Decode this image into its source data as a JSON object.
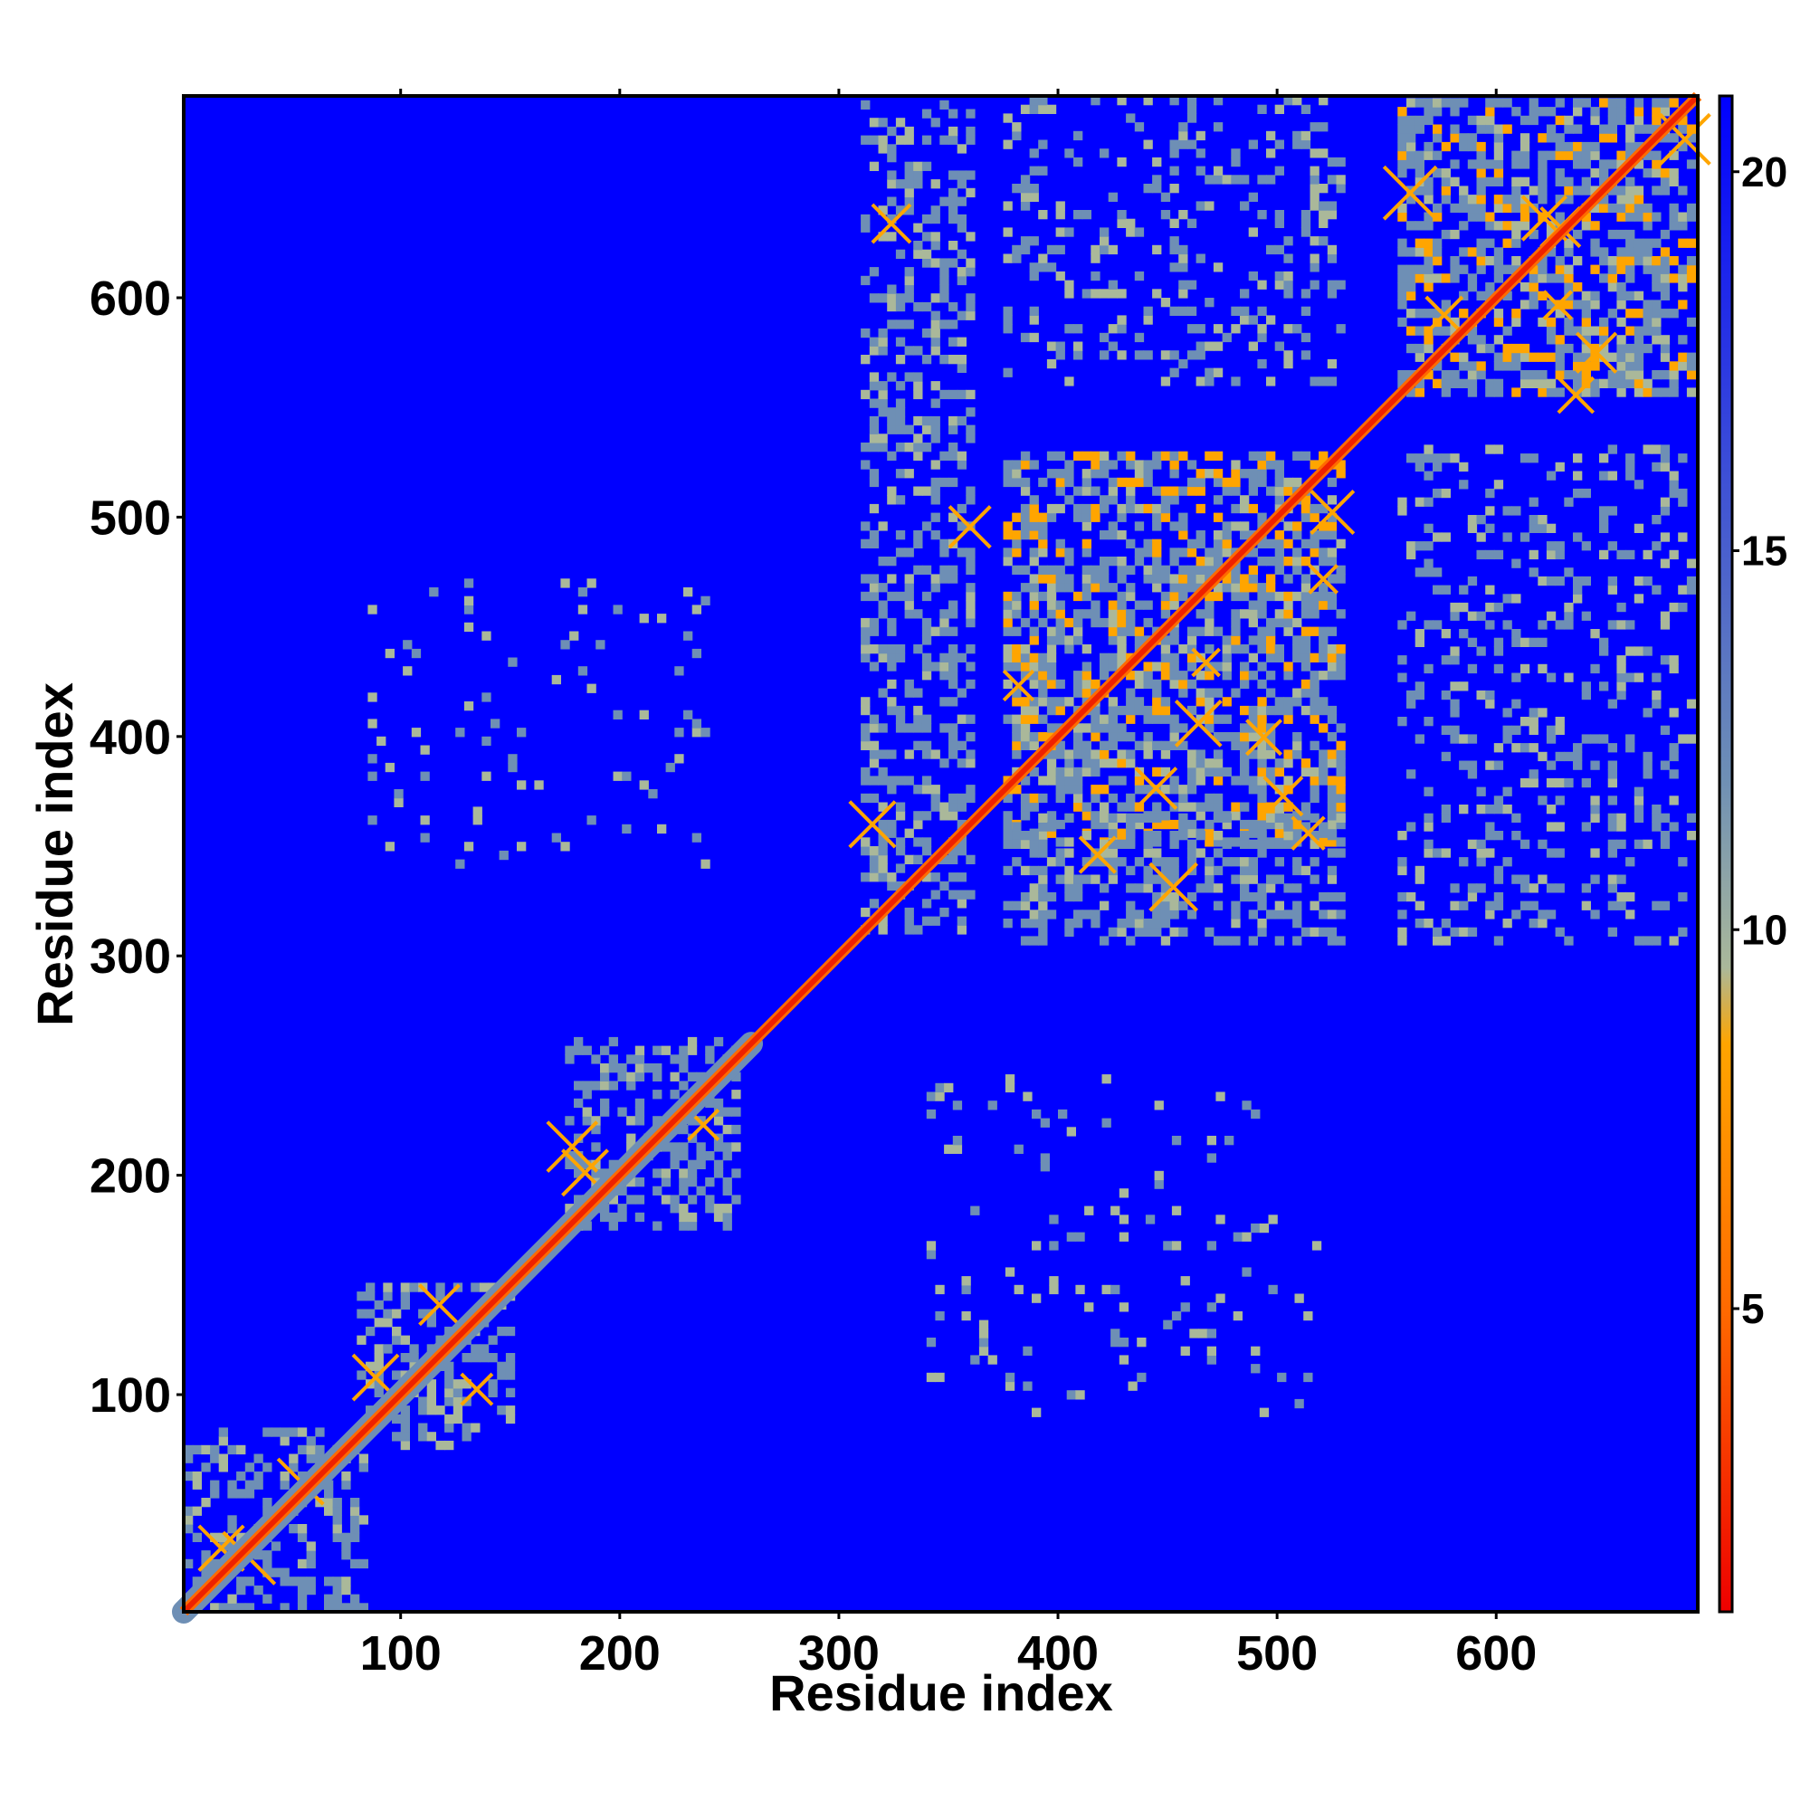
{
  "chart_data": {
    "type": "heatmap",
    "title": "",
    "xlabel": "Residue index",
    "ylabel": "Residue index",
    "xlim": [
      1,
      692
    ],
    "ylim": [
      1,
      692
    ],
    "x_ticks": [
      100,
      200,
      300,
      400,
      500,
      600
    ],
    "y_ticks": [
      100,
      200,
      300,
      400,
      500,
      600
    ],
    "x_tick_labels": [
      "100",
      "200",
      "300",
      "400",
      "500",
      "600"
    ],
    "y_tick_labels": [
      "100",
      "200",
      "300",
      "400",
      "500",
      "600"
    ],
    "colorbar": {
      "range": [
        1,
        21
      ],
      "ticks": [
        5,
        10,
        15,
        20
      ],
      "tick_labels": [
        "5",
        "10",
        "15",
        "20"
      ],
      "colors": [
        "#ee0000",
        "#ff6a00",
        "#ffa500",
        "#aab89a",
        "#6e8fb5",
        "#0000ff"
      ],
      "stops": [
        1,
        5,
        8.5,
        9.5,
        12,
        21
      ]
    },
    "background_color": "#0000ff",
    "diagonal_color": "#ee2200",
    "symmetric": false,
    "diagonal_band": [
      [
        1,
        260
      ]
    ],
    "contact_blocks": [
      {
        "x": [
          1,
          85
        ],
        "y": [
          1,
          85
        ],
        "level": "medium"
      },
      {
        "x": [
          80,
          150
        ],
        "y": [
          75,
          150
        ],
        "level": "medium"
      },
      {
        "x": [
          175,
          255
        ],
        "y": [
          175,
          260
        ],
        "level": "medium"
      },
      {
        "x": [
          310,
          360
        ],
        "y": [
          310,
          690
        ],
        "level": "medium"
      },
      {
        "x": [
          375,
          530
        ],
        "y": [
          350,
          530
        ],
        "level": "dense"
      },
      {
        "x": [
          375,
          530
        ],
        "y": [
          305,
          365
        ],
        "level": "medium"
      },
      {
        "x": [
          375,
          530
        ],
        "y": [
          560,
          690
        ],
        "level": "sparse"
      },
      {
        "x": [
          555,
          690
        ],
        "y": [
          555,
          690
        ],
        "level": "dense"
      },
      {
        "x": [
          555,
          690
        ],
        "y": [
          305,
          530
        ],
        "level": "sparse"
      },
      {
        "x": [
          340,
          520
        ],
        "y": [
          90,
          245
        ],
        "level": "faint"
      },
      {
        "x": [
          85,
          245
        ],
        "y": [
          340,
          470
        ],
        "level": "faint"
      }
    ]
  }
}
